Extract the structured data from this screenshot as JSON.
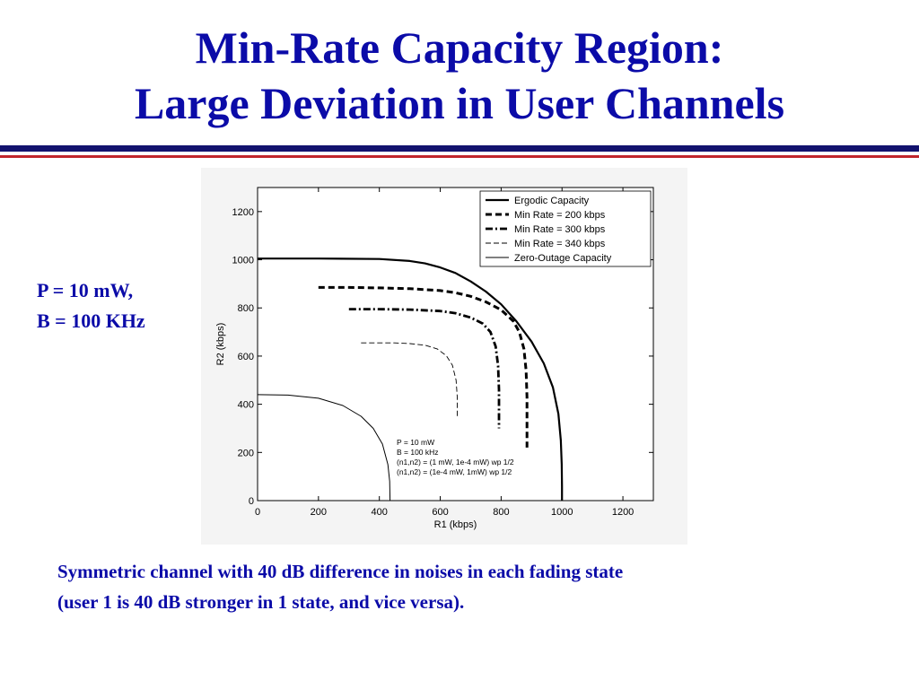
{
  "slide": {
    "title_line1": "Min-Rate Capacity Region:",
    "title_line2": "Large Deviation in User Channels",
    "side_line1": "P = 10 mW,",
    "side_line2": "B = 100 KHz",
    "caption_line1": "Symmetric channel with 40 dB difference in noises in each fading state",
    "caption_line2": "(user 1 is 40 dB stronger in 1 state, and vice versa)."
  },
  "colors": {
    "text_blue": "#0b0ba8",
    "rule_blue": "#12126e",
    "rule_red": "#c0262c"
  },
  "chart_data": {
    "type": "line",
    "xlabel": "R1 (kbps)",
    "ylabel": "R2 (kbps)",
    "xlim": [
      0,
      1300
    ],
    "ylim": [
      0,
      1300
    ],
    "xticks": [
      0,
      200,
      400,
      600,
      800,
      1000,
      1200
    ],
    "yticks": [
      0,
      200,
      400,
      600,
      800,
      1000,
      1200
    ],
    "grid": false,
    "legend_position": "top-right",
    "series": [
      {
        "name": "Ergodic Capacity",
        "style": "solid-thick",
        "points": [
          [
            0,
            1005
          ],
          [
            200,
            1005
          ],
          [
            400,
            1003
          ],
          [
            500,
            995
          ],
          [
            550,
            985
          ],
          [
            600,
            968
          ],
          [
            650,
            945
          ],
          [
            700,
            910
          ],
          [
            750,
            868
          ],
          [
            800,
            815
          ],
          [
            850,
            745
          ],
          [
            900,
            660
          ],
          [
            940,
            570
          ],
          [
            970,
            470
          ],
          [
            988,
            360
          ],
          [
            996,
            250
          ],
          [
            999,
            150
          ],
          [
            1000,
            60
          ],
          [
            1000,
            0
          ]
        ]
      },
      {
        "name": "Min Rate = 200 kbps",
        "style": "dashed-thick",
        "points": [
          [
            200,
            885
          ],
          [
            300,
            885
          ],
          [
            400,
            883
          ],
          [
            500,
            880
          ],
          [
            600,
            872
          ],
          [
            650,
            863
          ],
          [
            700,
            848
          ],
          [
            750,
            825
          ],
          [
            800,
            792
          ],
          [
            840,
            745
          ],
          [
            860,
            700
          ],
          [
            875,
            630
          ],
          [
            882,
            540
          ],
          [
            885,
            430
          ],
          [
            885,
            330
          ],
          [
            885,
            220
          ]
        ]
      },
      {
        "name": "Min Rate = 300 kbps",
        "style": "dashdot-thick",
        "points": [
          [
            300,
            795
          ],
          [
            400,
            795
          ],
          [
            500,
            793
          ],
          [
            600,
            787
          ],
          [
            650,
            778
          ],
          [
            700,
            760
          ],
          [
            740,
            735
          ],
          [
            765,
            700
          ],
          [
            782,
            640
          ],
          [
            790,
            560
          ],
          [
            793,
            460
          ],
          [
            793,
            370
          ],
          [
            793,
            300
          ]
        ]
      },
      {
        "name": "Min Rate = 340 kbps",
        "style": "dashed-thin",
        "points": [
          [
            340,
            655
          ],
          [
            450,
            655
          ],
          [
            500,
            652
          ],
          [
            550,
            645
          ],
          [
            590,
            630
          ],
          [
            620,
            602
          ],
          [
            640,
            562
          ],
          [
            652,
            500
          ],
          [
            656,
            430
          ],
          [
            656,
            340
          ]
        ]
      },
      {
        "name": "Zero-Outage Capacity",
        "style": "solid-thin",
        "points": [
          [
            0,
            440
          ],
          [
            100,
            438
          ],
          [
            200,
            425
          ],
          [
            280,
            395
          ],
          [
            340,
            350
          ],
          [
            380,
            300
          ],
          [
            410,
            235
          ],
          [
            428,
            150
          ],
          [
            434,
            80
          ],
          [
            435,
            0
          ]
        ]
      }
    ],
    "annotation": [
      "P = 10 mW",
      "B = 100 kHz",
      "(n1,n2) = (1 mW, 1e-4 mW) wp 1/2",
      "(n1,n2) = (1e-4 mW, 1mW) wp 1/2"
    ]
  }
}
